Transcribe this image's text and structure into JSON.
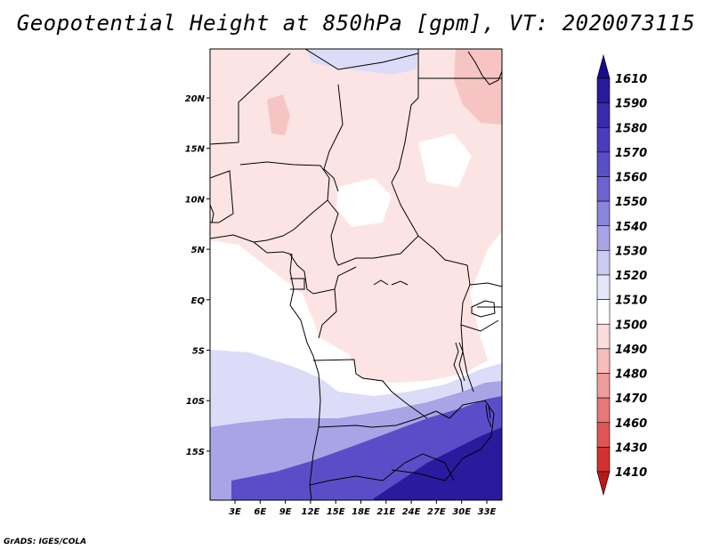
{
  "title": "Geopotential Height at 850hPa [gpm], VT: 2020073115",
  "credit": "GrADS: IGES/COLA",
  "map": {
    "region": "Central Africa",
    "lon_labels": [
      "3E",
      "6E",
      "9E",
      "12E",
      "15E",
      "18E",
      "21E",
      "24E",
      "27E",
      "30E",
      "33E"
    ],
    "lat_labels": [
      "20N",
      "15N",
      "10N",
      "5N",
      "EQ",
      "5S",
      "10S",
      "15S"
    ]
  },
  "colorbar": {
    "levels": [
      "1610",
      "1590",
      "1580",
      "1570",
      "1560",
      "1550",
      "1540",
      "1530",
      "1520",
      "1510",
      "1500",
      "1490",
      "1480",
      "1470",
      "1460",
      "1430",
      "1410"
    ],
    "colors": [
      "#1a0a8c",
      "#2a1a9e",
      "#3a2aae",
      "#4a3cbe",
      "#5a4ec8",
      "#6c62d0",
      "#8a84dc",
      "#a8a4e6",
      "#cccaf2",
      "#e6e6fa",
      "#ffffff",
      "#fbdcdc",
      "#f7bcbc",
      "#ef9c9c",
      "#e87878",
      "#df5555",
      "#d33030",
      "#b81818"
    ]
  },
  "field": {
    "blue_dark": "#2a1a9e",
    "blue_mid": "#5a4ec8",
    "blue_light": "#a8a4e6",
    "blue_pale": "#dcdcf8",
    "pink_pale": "#fde4e4",
    "pink": "#f7c4c4",
    "pink_deep": "#f2a8a8"
  }
}
